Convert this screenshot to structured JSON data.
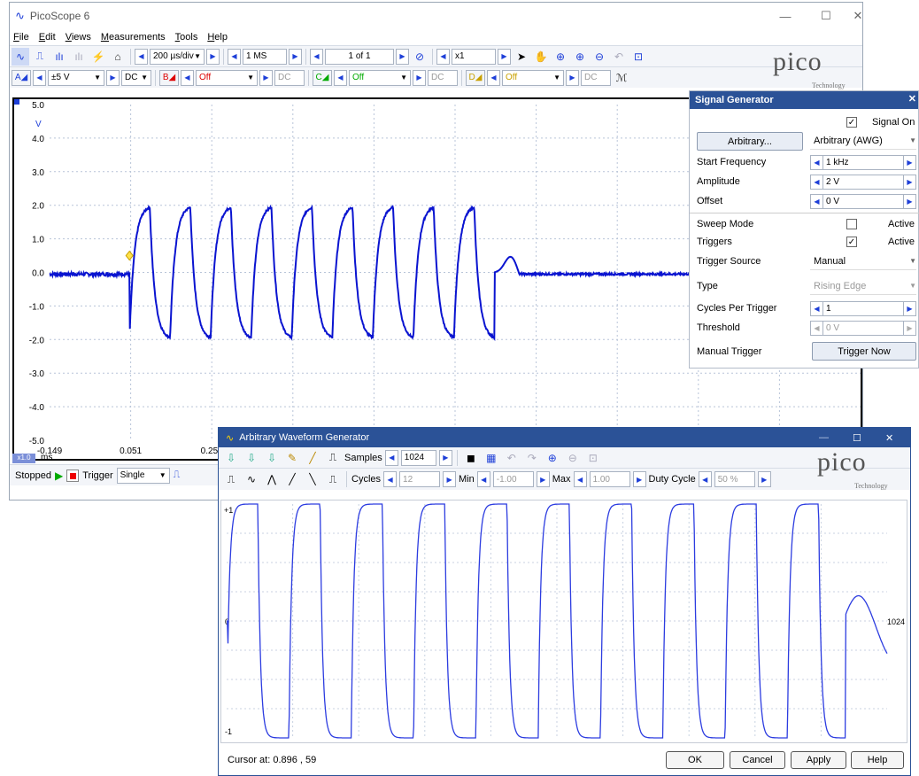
{
  "main": {
    "title": "PicoScope 6",
    "menu": [
      "File",
      "Edit",
      "Views",
      "Measurements",
      "Tools",
      "Help"
    ],
    "timebase": "200 µs/div",
    "samples": "1 MS",
    "buffer": "1 of 1",
    "zoom": "x1",
    "chA": {
      "label": "A",
      "range": "±5 V",
      "coupling": "DC"
    },
    "chB": {
      "label": "B",
      "range": "Off",
      "coupling": "DC"
    },
    "chC": {
      "label": "C",
      "range": "Off",
      "coupling": "DC"
    },
    "chD": {
      "label": "D",
      "range": "Off",
      "coupling": "DC"
    },
    "logo": "pico",
    "logo_sub": "Technology",
    "status": "Stopped",
    "trigger_label": "Trigger",
    "trigger_mode": "Single",
    "x_unit": "ms",
    "x_scale": "x1.0",
    "accent": "#1e3fd8"
  },
  "chart_data": {
    "type": "line",
    "ylabel": "V",
    "y_ticks": [
      "5.0",
      "4.0",
      "3.0",
      "2.0",
      "1.0",
      "0.0",
      "-1.0",
      "-2.0",
      "-3.0",
      "-4.0",
      "-5.0"
    ],
    "x_ticks": [
      "-0.149",
      "0.051",
      "0.251"
    ],
    "ylim": [
      -5,
      5
    ],
    "xlim": [
      -0.149,
      1.851
    ],
    "cycles": 9,
    "high": 2.0,
    "low": -2.0,
    "baseline": -0.05,
    "burst_start": 0.048,
    "cycle_period": 0.1,
    "series_color": "#0a14d0",
    "grid": true
  },
  "siggen": {
    "title": "Signal Generator",
    "signal_on": "Signal On",
    "arb_button": "Arbitrary...",
    "wave_type": "Arbitrary (AWG)",
    "rows": [
      {
        "label": "Start Frequency",
        "value": "1 kHz"
      },
      {
        "label": "Amplitude",
        "value": "2 V"
      },
      {
        "label": "Offset",
        "value": "0 V"
      }
    ],
    "sweep_mode": "Sweep Mode",
    "active": "Active",
    "triggers": "Triggers",
    "trigger_source_label": "Trigger Source",
    "trigger_source": "Manual",
    "type_label": "Type",
    "type_value": "Rising Edge",
    "cycles_label": "Cycles Per Trigger",
    "cycles_value": "1",
    "threshold_label": "Threshold",
    "threshold_value": "0 V",
    "manual_trigger": "Manual Trigger",
    "trigger_now": "Trigger Now"
  },
  "awg": {
    "title": "Arbitrary Waveform Generator",
    "samples_label": "Samples",
    "samples": "1024",
    "cycles_label": "Cycles",
    "cycles": "12",
    "min_label": "Min",
    "min": "-1.00",
    "max_label": "Max",
    "max": "1.00",
    "duty_label": "Duty Cycle",
    "duty": "50 %",
    "y_top": "+1",
    "y_mid": "0",
    "y_bot": "-1",
    "x_end": "1024",
    "cursor": "Cursor at: 0.896 , 59",
    "buttons": [
      "OK",
      "Cancel",
      "Apply",
      "Help"
    ],
    "logo": "pico",
    "logo_sub": "Technology",
    "wave_color": "#2c3ce0"
  }
}
